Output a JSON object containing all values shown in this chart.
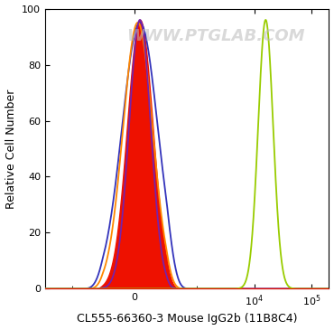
{
  "xlabel": "CL555-66360-3 Mouse IgG2b (11B8C4)",
  "ylabel": "Relative Cell Number",
  "ylim": [
    0,
    100
  ],
  "yticks": [
    0,
    20,
    40,
    60,
    80,
    100
  ],
  "watermark": "WWW.PTGLAB.COM",
  "bg_color": "#ffffff",
  "plot_bg_color": "#ffffff",
  "green_color": "#99cc00",
  "red_color": "#ee1100",
  "orange_color": "#ff8800",
  "blue_color": "#3333bb",
  "purple_color": "#7722aa",
  "line_width": 1.3,
  "xlabel_fontsize": 9,
  "ylabel_fontsize": 9,
  "tick_fontsize": 8,
  "watermark_fontsize": 13,
  "watermark_color": "#bbbbbb",
  "watermark_alpha": 0.55,
  "linthresh": 300,
  "xlim": [
    -3000,
    200000
  ],
  "neg_mu": 50,
  "neg_sigma": 120,
  "neg_height": 96,
  "green_mu_log": 4.2,
  "green_sigma_log": 0.13,
  "green_height": 96
}
